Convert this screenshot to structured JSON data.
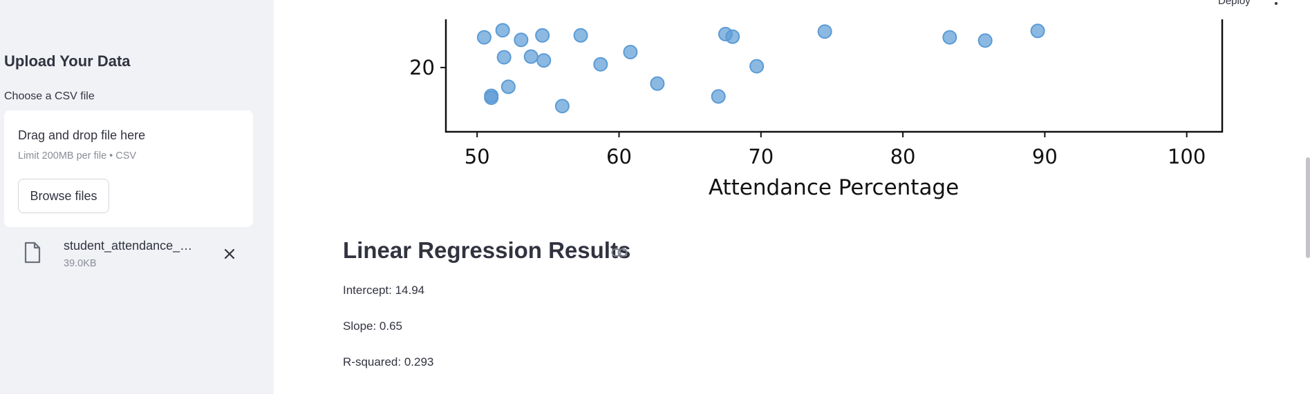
{
  "sidebar": {
    "title": "Upload Your Data",
    "uploader_label": "Choose a CSV file",
    "dropzone": {
      "title": "Drag and drop file here",
      "limit": "Limit 200MB per file • CSV",
      "browse_label": "Browse files"
    },
    "file": {
      "name": "student_attendance_exam_scores.csv",
      "size": "39.0KB",
      "icon": "file-icon"
    }
  },
  "header": {
    "deploy_label": "Deploy",
    "menu_icon": "kebab-menu-icon"
  },
  "chart_data": {
    "type": "scatter",
    "xlabel": "Attendance Percentage",
    "ylabel": "",
    "xlim": [
      47.8,
      102.5
    ],
    "visible_ylim": [
      10,
      27.5
    ],
    "x_ticks": [
      50,
      60,
      70,
      80,
      90,
      100
    ],
    "y_ticks": [
      20
    ],
    "point_color": "#5b9bd5",
    "grid": false,
    "points": [
      {
        "x": 50.5,
        "y": 24.7
      },
      {
        "x": 51.8,
        "y": 25.8
      },
      {
        "x": 53.1,
        "y": 24.3
      },
      {
        "x": 54.6,
        "y": 25.0
      },
      {
        "x": 57.3,
        "y": 25.0
      },
      {
        "x": 67.5,
        "y": 25.2
      },
      {
        "x": 68.0,
        "y": 24.8
      },
      {
        "x": 74.5,
        "y": 25.6
      },
      {
        "x": 83.3,
        "y": 24.7
      },
      {
        "x": 85.8,
        "y": 24.2
      },
      {
        "x": 89.5,
        "y": 25.7
      },
      {
        "x": 51.9,
        "y": 21.6
      },
      {
        "x": 53.8,
        "y": 21.7
      },
      {
        "x": 54.7,
        "y": 21.1
      },
      {
        "x": 60.8,
        "y": 22.4
      },
      {
        "x": 58.7,
        "y": 20.5
      },
      {
        "x": 69.7,
        "y": 20.2
      },
      {
        "x": 52.2,
        "y": 17.0
      },
      {
        "x": 51.0,
        "y": 15.6
      },
      {
        "x": 51.0,
        "y": 15.3
      },
      {
        "x": 62.7,
        "y": 17.5
      },
      {
        "x": 67.0,
        "y": 15.5
      },
      {
        "x": 56.0,
        "y": 14.0
      }
    ]
  },
  "results": {
    "heading": "Linear Regression Results",
    "intercept": "Intercept: 14.94",
    "slope": "Slope: 0.65",
    "r_squared": "R-squared: 0.293"
  }
}
